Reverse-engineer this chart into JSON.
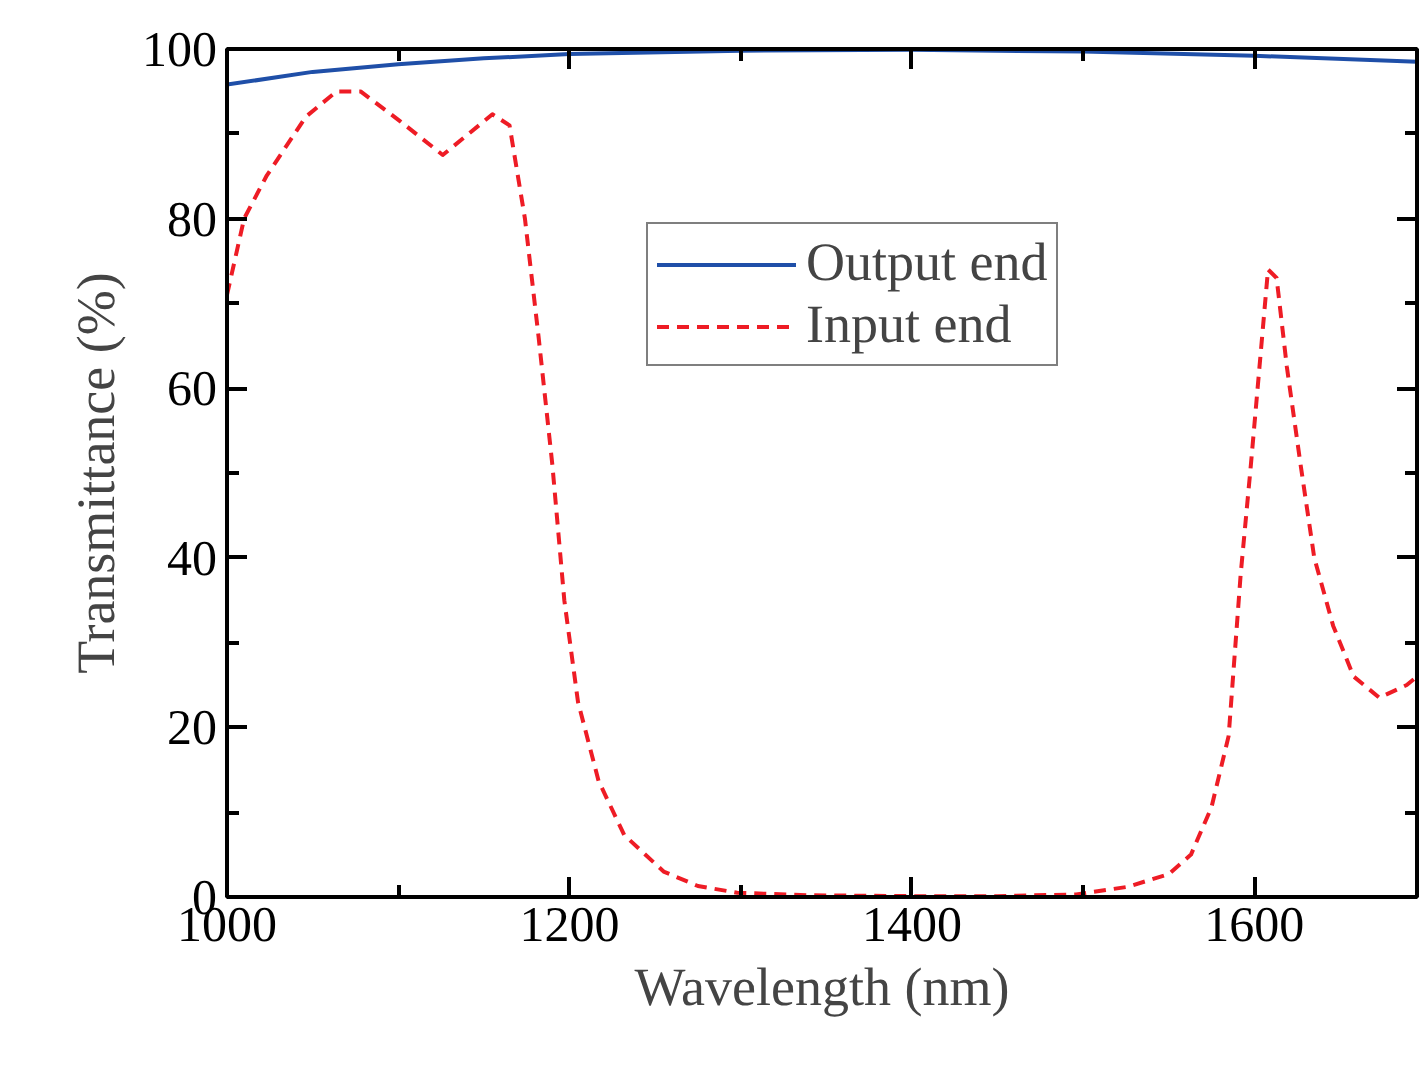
{
  "chart_data": {
    "type": "line",
    "xlabel": "Wavelength (nm)",
    "ylabel": "Transmittance (%)",
    "xlim": [
      1000,
      1695
    ],
    "xticks": [
      1000,
      1200,
      1400,
      1600
    ],
    "ylim": [
      0,
      100
    ],
    "yticks": [
      0,
      20,
      40,
      60,
      80,
      100
    ],
    "grid": false,
    "legend": "top",
    "marker": "none",
    "series": [
      {
        "name": "Output end",
        "color": "#1f4fa8",
        "line_style": "solid",
        "x": [
          1000,
          1050,
          1100,
          1150,
          1200,
          1300,
          1400,
          1500,
          1600,
          1695
        ],
        "values": [
          95.8,
          97.3,
          98.2,
          98.9,
          99.4,
          99.8,
          99.9,
          99.7,
          99.2,
          98.5
        ]
      },
      {
        "name": "Input end",
        "color": "#ee1c25",
        "line_style": "dashed",
        "x": [
          1000,
          1010,
          1023,
          1046,
          1064,
          1078,
          1101,
          1126,
          1155,
          1165,
          1174,
          1182,
          1190,
          1197,
          1205,
          1217,
          1232,
          1255,
          1275,
          1298,
          1340,
          1400,
          1450,
          1496,
          1526,
          1550,
          1563,
          1575,
          1585,
          1592,
          1598,
          1603,
          1608,
          1613,
          1619,
          1627,
          1635,
          1646,
          1658,
          1673,
          1689,
          1695
        ],
        "values": [
          71,
          80,
          85,
          92,
          95,
          95,
          91.5,
          87.5,
          92.3,
          91,
          80,
          66,
          51,
          35,
          23,
          13.7,
          7.3,
          3,
          1.3,
          0.5,
          0.2,
          0.1,
          0.1,
          0.3,
          1.2,
          2.7,
          5,
          10.6,
          19,
          38,
          51,
          62.5,
          74,
          73,
          62.5,
          51,
          40,
          32,
          26,
          23.5,
          25,
          26
        ]
      }
    ]
  }
}
